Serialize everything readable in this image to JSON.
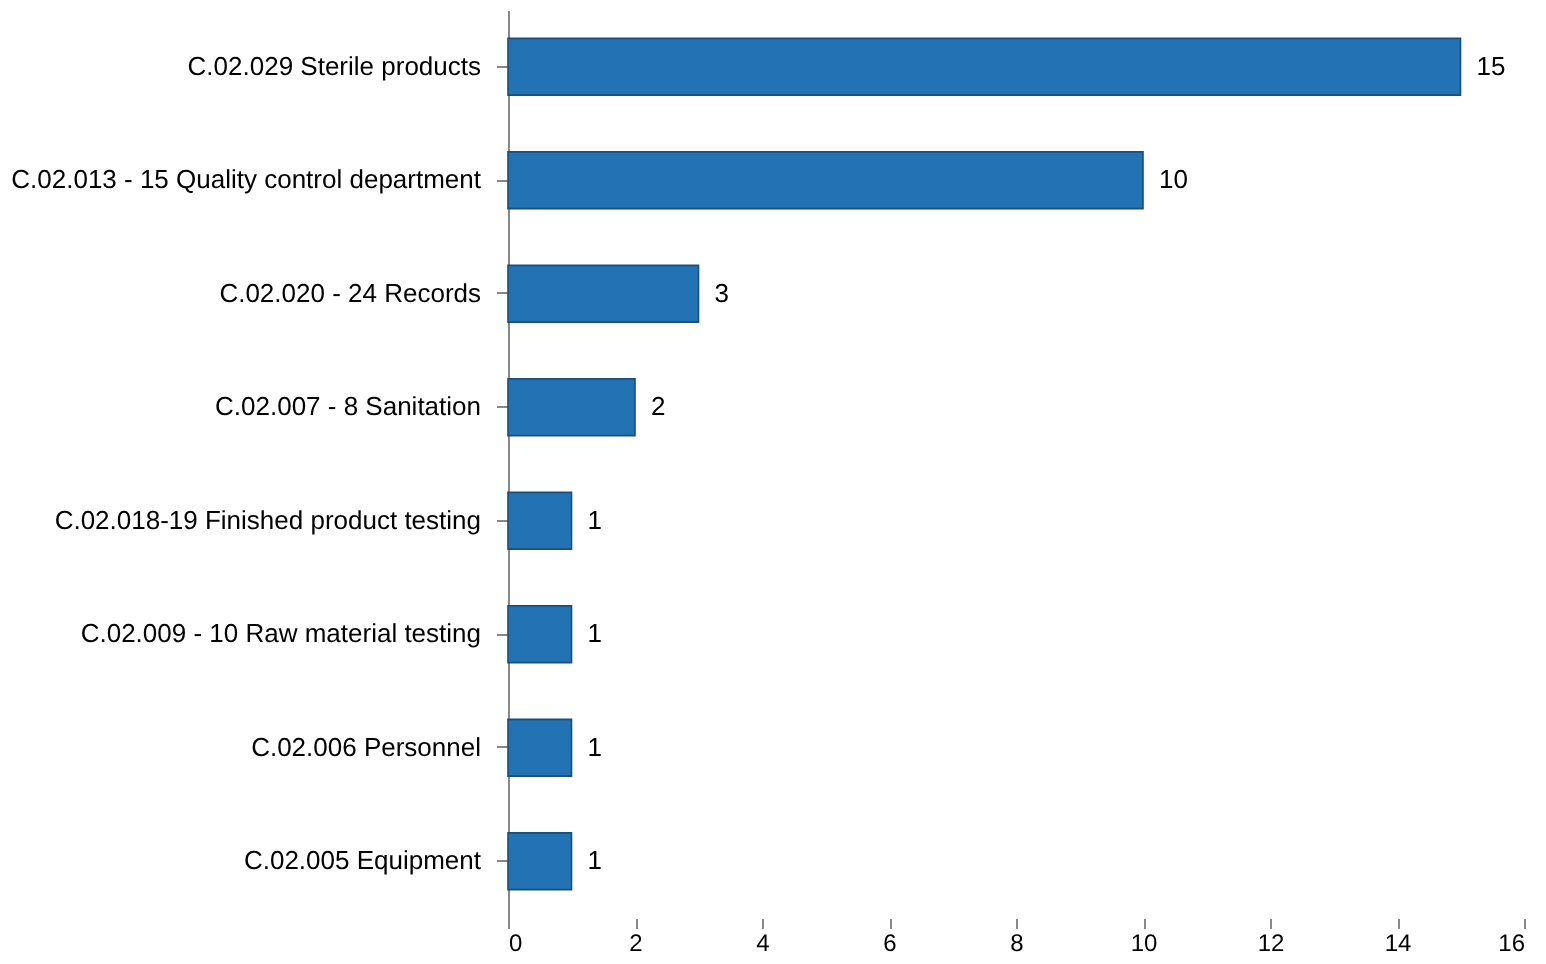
{
  "chart_data": {
    "type": "bar",
    "orientation": "horizontal",
    "categories": [
      "C.02.029 Sterile products",
      "C.02.013 - 15 Quality control department",
      "C.02.020 - 24 Records",
      "C.02.007 - 8 Sanitation",
      "C.02.018-19 Finished product testing",
      "C.02.009 - 10 Raw material testing",
      "C.02.006 Personnel",
      "C.02.005 Equipment"
    ],
    "values": [
      15,
      10,
      3,
      2,
      1,
      1,
      1,
      1
    ],
    "color": "#2272b4",
    "xlim": [
      0,
      16
    ],
    "xticks": [
      0,
      2,
      4,
      6,
      8,
      10,
      12,
      14,
      16
    ],
    "data_labels": true,
    "grid": false
  }
}
